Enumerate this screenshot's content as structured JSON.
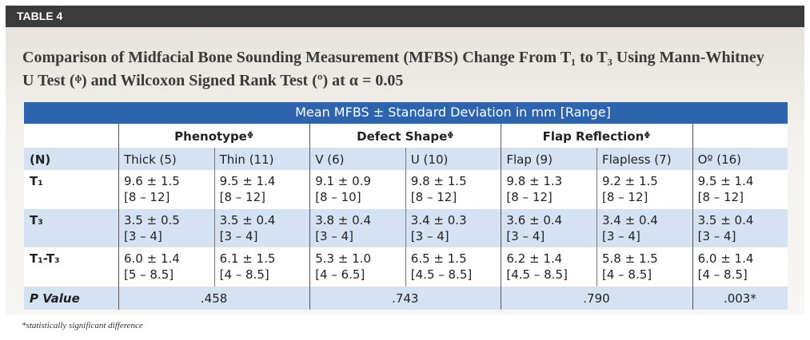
{
  "header": {
    "label": "TABLE 4"
  },
  "title": "Comparison of Midfacial Bone Sounding Measurement (MFBS) Change From T₁ to T₃ Using Mann-Whitney U Test (ᶲ) and Wilcoxon Signed Rank Test (º) at α = 0.05",
  "table": {
    "banner": "Mean MFBS ± Standard Deviation in mm [Range]",
    "groups": [
      "Phenotypeᶲ",
      "Defect Shapeᶲ",
      "Flap Reflectionᶲ"
    ],
    "n_label": "(N)",
    "columns": [
      "Thick (5)",
      "Thin (11)",
      "V (6)",
      "U (10)",
      "Flap (9)",
      "Flapless (7)",
      "Oº (16)"
    ],
    "rows": [
      {
        "label": "T₁",
        "cells": [
          [
            "9.6 ± 1.5",
            "[8 – 12]"
          ],
          [
            "9.5 ± 1.4",
            "[8 – 12]"
          ],
          [
            "9.1 ± 0.9",
            "[8 – 10]"
          ],
          [
            "9.8 ± 1.5",
            "[8 – 12]"
          ],
          [
            "9.8 ± 1.3",
            "[8 – 12]"
          ],
          [
            "9.2 ± 1.5",
            "[8 – 12]"
          ],
          [
            "9.5 ± 1.4",
            "[8 – 12]"
          ]
        ]
      },
      {
        "label": "T₃",
        "cells": [
          [
            "3.5 ± 0.5",
            "[3 – 4]"
          ],
          [
            "3.5 ± 0.4",
            "[3 – 4]"
          ],
          [
            "3.8 ± 0.4",
            "[3 – 4]"
          ],
          [
            "3.4 ± 0.3",
            "[3 – 4]"
          ],
          [
            "3.6 ± 0.4",
            "[3 – 4]"
          ],
          [
            "3.4 ± 0.4",
            "[3 – 4]"
          ],
          [
            "3.5 ± 0.4",
            "[3 – 4]"
          ]
        ]
      },
      {
        "label": "T₁-T₃",
        "cells": [
          [
            "6.0 ± 1.4",
            "[5 – 8.5]"
          ],
          [
            "6.1 ± 1.5",
            "[4 – 8.5]"
          ],
          [
            "5.3 ± 1.0",
            "[4 – 6.5]"
          ],
          [
            "6.5 ± 1.5",
            "[4.5 – 8.5]"
          ],
          [
            "6.2 ± 1.4",
            "[4.5 – 8.5]"
          ],
          [
            "5.8 ± 1.5",
            "[4 – 8.5]"
          ],
          [
            "6.0 ± 1.4",
            "[4 – 8.5]"
          ]
        ]
      }
    ],
    "p_value": {
      "label": "P Value",
      "values": [
        ".458",
        ".743",
        ".790",
        ".003*"
      ]
    }
  },
  "footnote": "*statistically significant difference"
}
